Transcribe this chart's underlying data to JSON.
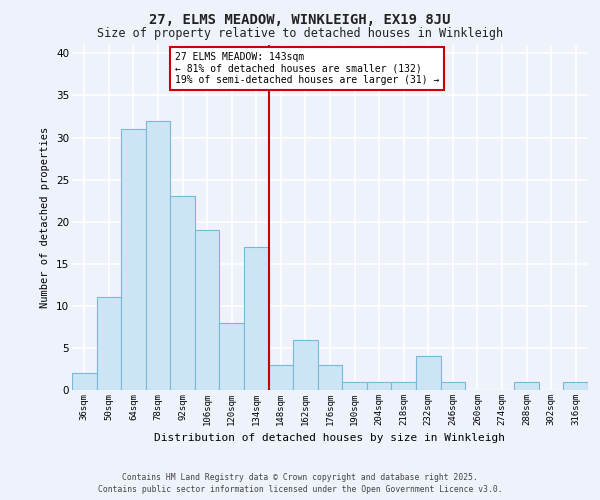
{
  "title": "27, ELMS MEADOW, WINKLEIGH, EX19 8JU",
  "subtitle": "Size of property relative to detached houses in Winkleigh",
  "xlabel": "Distribution of detached houses by size in Winkleigh",
  "ylabel": "Number of detached properties",
  "footer_line1": "Contains HM Land Registry data © Crown copyright and database right 2025.",
  "footer_line2": "Contains public sector information licensed under the Open Government Licence v3.0.",
  "bin_labels": [
    "36sqm",
    "50sqm",
    "64sqm",
    "78sqm",
    "92sqm",
    "106sqm",
    "120sqm",
    "134sqm",
    "148sqm",
    "162sqm",
    "176sqm",
    "190sqm",
    "204sqm",
    "218sqm",
    "232sqm",
    "246sqm",
    "260sqm",
    "274sqm",
    "288sqm",
    "302sqm",
    "316sqm"
  ],
  "bar_values": [
    2,
    11,
    31,
    32,
    23,
    19,
    8,
    17,
    3,
    6,
    3,
    1,
    1,
    1,
    4,
    1,
    0,
    0,
    1,
    0,
    1
  ],
  "bar_color": "#cce5f5",
  "bar_edge_color": "#7ab8d9",
  "vline_color": "#cc0000",
  "vline_x": 7.5,
  "annotation_label": "27 ELMS MEADOW: 143sqm",
  "annotation_line1": "← 81% of detached houses are smaller (132)",
  "annotation_line2": "19% of semi-detached houses are larger (31) →",
  "annotation_box_edge_color": "#cc0000",
  "background_color": "#eef2fb",
  "grid_color": "#ffffff",
  "ylim": [
    0,
    41
  ],
  "yticks": [
    0,
    5,
    10,
    15,
    20,
    25,
    30,
    35,
    40
  ]
}
